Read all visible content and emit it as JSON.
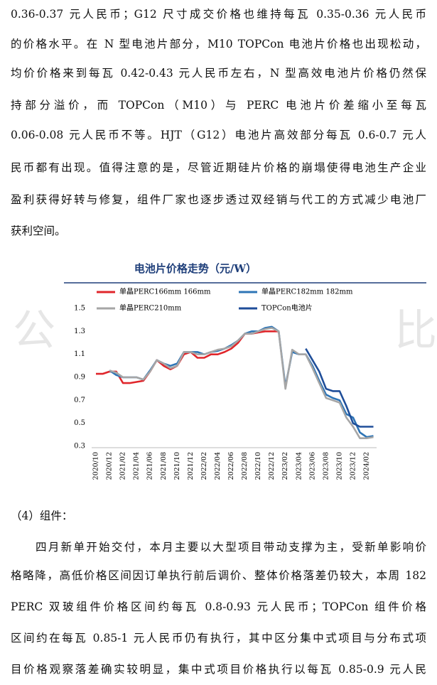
{
  "paragraph1": [
    "0.36-0.37 元人民币；G12 尺寸成交价格也维持每瓦 0.35-0.36 元人民币",
    "的价格水平。在 N 型电池片部分，M10 TOPCon 电池片价格也出现松动，",
    "均价价格来到每瓦 0.42-0.43 元人民币左右，N 型高效电池片价格仍然保",
    "持部分溢价，而 TOPCon（M10）与 PERC 电池片价差缩小至每瓦",
    "0.06-0.08 元人民币不等。HJT（G12）电池片高效部分每瓦 0.6-0.7 元人",
    "民币都有出现。值得注意的是，尽管近期硅片价格的崩塌使得电池生产企业",
    "盈利获得好转与修复，组件厂家也逐步透过双经销与代工的方式减少电池厂",
    "获利空间。"
  ],
  "watermark": [
    "公",
    "比"
  ],
  "chart_data": {
    "type": "line",
    "title": "电池片价格走势（元/W）",
    "categories": [
      "2020/10",
      null,
      "2020/12",
      null,
      "2021/02",
      null,
      "2021/04",
      null,
      "2021/06",
      null,
      "2021/08",
      null,
      "2021/10",
      null,
      "2021/12",
      null,
      "2022/02",
      null,
      "2022/04",
      null,
      "2022/06",
      null,
      "2022/08",
      null,
      "2022/10",
      null,
      "2022/12",
      null,
      "2023/02",
      null,
      "2023/04",
      null,
      "2023/06",
      null,
      "2023/08",
      null,
      "2023/10",
      null,
      "2023/12",
      null,
      "2024/02",
      null
    ],
    "ylim": [
      0.3,
      1.5
    ],
    "yticks": [
      0.3,
      0.5,
      0.7,
      0.9,
      1.1,
      1.3,
      1.5
    ],
    "grid": false,
    "series": [
      {
        "name": "单晶PERC166mm 166mm",
        "color": "#e0262b",
        "values": [
          0.93,
          0.93,
          0.95,
          0.95,
          0.85,
          0.85,
          0.86,
          0.87,
          0.95,
          1.05,
          1.0,
          0.97,
          1.0,
          1.1,
          1.12,
          1.07,
          1.07,
          1.1,
          1.1,
          1.12,
          1.15,
          1.2,
          1.28,
          1.28,
          1.29,
          1.3,
          1.3,
          1.3,
          null,
          null,
          null,
          null,
          null,
          null,
          null,
          null,
          null,
          null,
          null,
          null,
          null,
          null
        ]
      },
      {
        "name": "单晶PERC182mm 182mm",
        "color": "#2e75b6",
        "values": [
          null,
          null,
          0.96,
          0.92,
          0.9,
          0.9,
          0.9,
          0.88,
          0.96,
          1.05,
          1.02,
          1.0,
          1.02,
          1.12,
          1.12,
          1.12,
          1.1,
          1.12,
          1.13,
          1.15,
          1.18,
          1.22,
          1.28,
          1.3,
          1.3,
          1.33,
          1.34,
          1.3,
          0.82,
          1.12,
          1.1,
          1.1,
          1.0,
          0.87,
          0.75,
          0.72,
          0.7,
          0.58,
          0.55,
          0.42,
          0.38,
          0.39
        ]
      },
      {
        "name": "单晶PERC210mm",
        "color": "#a6a6a6",
        "values": [
          null,
          null,
          0.96,
          0.94,
          0.9,
          0.9,
          0.9,
          0.88,
          0.95,
          1.05,
          1.02,
          0.98,
          1.0,
          1.12,
          1.12,
          1.1,
          1.1,
          1.12,
          1.14,
          1.15,
          1.17,
          1.22,
          1.28,
          1.28,
          1.3,
          1.32,
          1.33,
          1.3,
          0.8,
          1.14,
          1.1,
          1.1,
          0.98,
          0.85,
          0.72,
          0.7,
          0.68,
          0.55,
          0.47,
          0.37,
          0.37,
          0.38
        ]
      },
      {
        "name": "TOPCon电池片",
        "color": "#1f4e99",
        "values": [
          null,
          null,
          null,
          null,
          null,
          null,
          null,
          null,
          null,
          null,
          null,
          null,
          null,
          null,
          null,
          null,
          null,
          null,
          null,
          null,
          null,
          null,
          null,
          null,
          null,
          null,
          null,
          null,
          null,
          null,
          null,
          1.15,
          1.05,
          0.95,
          0.8,
          0.78,
          0.78,
          0.65,
          0.5,
          0.47,
          0.47,
          0.47
        ]
      }
    ]
  },
  "heading": "（4）组件：",
  "paragraph2": [
    "四月新单开始交付，本月主要以大型项目带动支撑为主，受新单影响价",
    "格略降，高低价格区间因订单执行前后调价、整体价格落差仍较大，本周 182",
    "PERC 双玻组件价格区间约每瓦 0.8-0.93 元人民币；TOPCon 组件价格",
    "区间约在每瓦 0.85-1 元人民币仍有执行，其中区分集中式项目与分布式项",
    "目价格观察落差确实较明显，集中式项目价格执行以每瓦 0.85-0.9 元人民"
  ]
}
